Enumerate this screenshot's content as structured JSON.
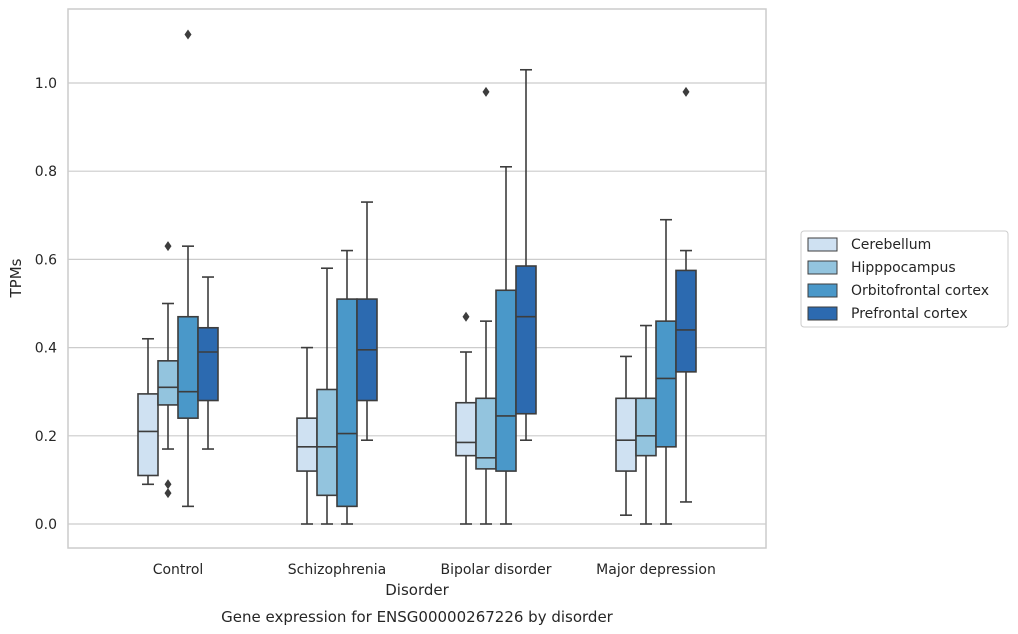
{
  "chart_data": {
    "type": "box",
    "caption": "Gene expression for ENSG00000267226 by disorder",
    "xlabel": "Disorder",
    "ylabel": "TPMs",
    "ylim": [
      -0.053,
      1.17
    ],
    "yticks": [
      0.0,
      0.2,
      0.4,
      0.6,
      0.8,
      1.0
    ],
    "ytick_labels": [
      "0.0",
      "0.2",
      "0.4",
      "0.6",
      "0.8",
      "1.0"
    ],
    "grid": "horizontal",
    "legend_position": "right",
    "categories": [
      "Control",
      "Schizophrenia",
      "Bipolar disorder",
      "Major depression"
    ],
    "series": [
      {
        "name": "Cerebellum",
        "color": "#cfe1f2",
        "boxes": [
          {
            "whisker_low": 0.09,
            "q1": 0.11,
            "median": 0.21,
            "q3": 0.295,
            "whisker_high": 0.42,
            "outliers": []
          },
          {
            "whisker_low": 0.0,
            "q1": 0.12,
            "median": 0.175,
            "q3": 0.24,
            "whisker_high": 0.4,
            "outliers": []
          },
          {
            "whisker_low": 0.0,
            "q1": 0.155,
            "median": 0.185,
            "q3": 0.275,
            "whisker_high": 0.39,
            "outliers": [
              0.47
            ]
          },
          {
            "whisker_low": 0.02,
            "q1": 0.12,
            "median": 0.19,
            "q3": 0.285,
            "whisker_high": 0.38,
            "outliers": []
          }
        ]
      },
      {
        "name": "Hipppocampus",
        "color": "#93c4de",
        "boxes": [
          {
            "whisker_low": 0.17,
            "q1": 0.27,
            "median": 0.31,
            "q3": 0.37,
            "whisker_high": 0.5,
            "outliers": [
              0.63,
              0.09,
              0.07
            ]
          },
          {
            "whisker_low": 0.0,
            "q1": 0.065,
            "median": 0.175,
            "q3": 0.305,
            "whisker_high": 0.58,
            "outliers": []
          },
          {
            "whisker_low": 0.0,
            "q1": 0.125,
            "median": 0.15,
            "q3": 0.285,
            "whisker_high": 0.46,
            "outliers": [
              0.98
            ]
          },
          {
            "whisker_low": 0.0,
            "q1": 0.155,
            "median": 0.2,
            "q3": 0.285,
            "whisker_high": 0.45,
            "outliers": []
          }
        ]
      },
      {
        "name": "Orbitofrontal cortex",
        "color": "#4a98c9",
        "boxes": [
          {
            "whisker_low": 0.04,
            "q1": 0.24,
            "median": 0.3,
            "q3": 0.47,
            "whisker_high": 0.63,
            "outliers": [
              1.11
            ]
          },
          {
            "whisker_low": 0.0,
            "q1": 0.04,
            "median": 0.205,
            "q3": 0.51,
            "whisker_high": 0.62,
            "outliers": []
          },
          {
            "whisker_low": 0.0,
            "q1": 0.12,
            "median": 0.245,
            "q3": 0.53,
            "whisker_high": 0.81,
            "outliers": []
          },
          {
            "whisker_low": 0.0,
            "q1": 0.175,
            "median": 0.33,
            "q3": 0.46,
            "whisker_high": 0.69,
            "outliers": []
          }
        ]
      },
      {
        "name": "Prefrontal cortex",
        "color": "#2c6ab0",
        "boxes": [
          {
            "whisker_low": 0.17,
            "q1": 0.28,
            "median": 0.39,
            "q3": 0.445,
            "whisker_high": 0.56,
            "outliers": []
          },
          {
            "whisker_low": 0.19,
            "q1": 0.28,
            "median": 0.395,
            "q3": 0.51,
            "whisker_high": 0.73,
            "outliers": []
          },
          {
            "whisker_low": 0.19,
            "q1": 0.25,
            "median": 0.47,
            "q3": 0.585,
            "whisker_high": 1.03,
            "outliers": []
          },
          {
            "whisker_low": 0.05,
            "q1": 0.345,
            "median": 0.44,
            "q3": 0.575,
            "whisker_high": 0.62,
            "outliers": [
              0.98
            ]
          }
        ]
      }
    ]
  }
}
